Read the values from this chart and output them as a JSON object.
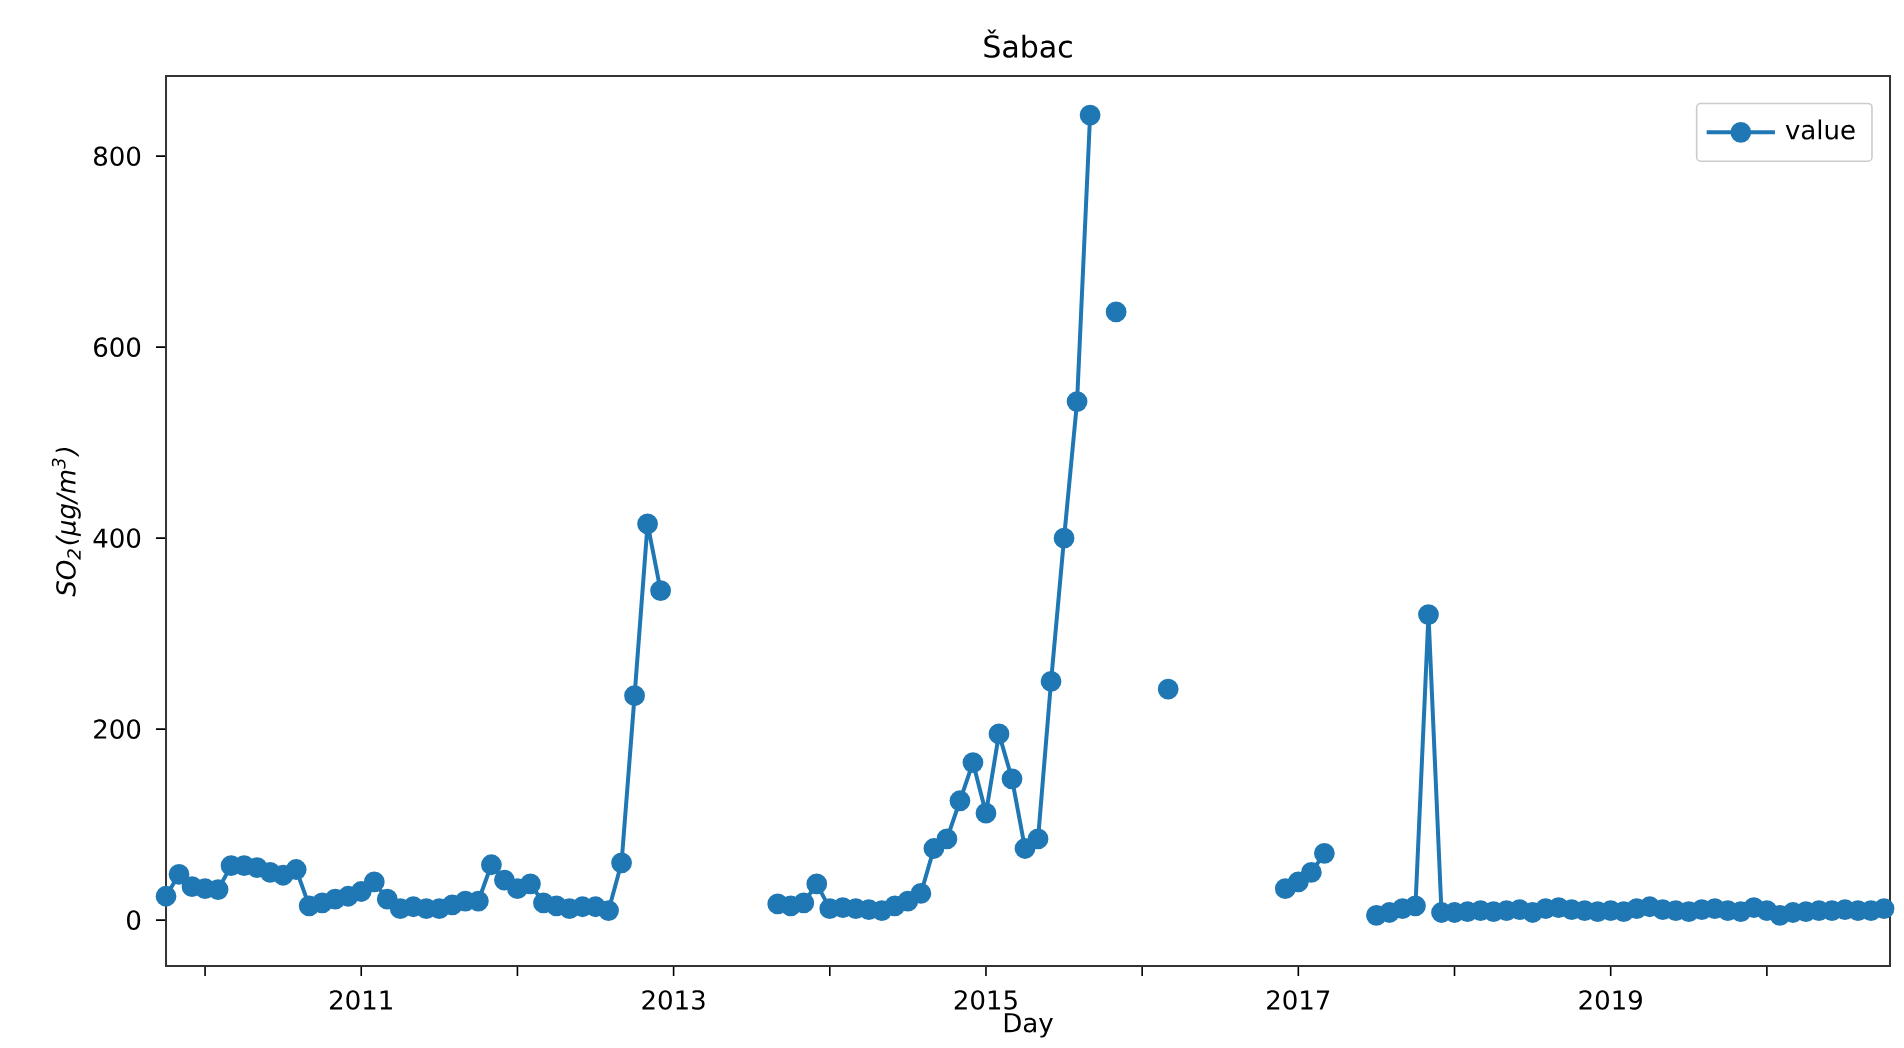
{
  "chart_data": {
    "type": "line",
    "title": "Šabac",
    "xlabel": "Day",
    "ylabel": "SO$_{2}$(μg/m$^{3}$)",
    "x": [
      "2009-10",
      "2009-11",
      "2009-12",
      "2010-01",
      "2010-02",
      "2010-03",
      "2010-04",
      "2010-05",
      "2010-06",
      "2010-07",
      "2010-08",
      "2010-09",
      "2010-10",
      "2010-11",
      "2010-12",
      "2011-01",
      "2011-02",
      "2011-03",
      "2011-04",
      "2011-05",
      "2011-06",
      "2011-07",
      "2011-08",
      "2011-09",
      "2011-10",
      "2011-11",
      "2011-12",
      "2012-01",
      "2012-02",
      "2012-03",
      "2012-04",
      "2012-05",
      "2012-06",
      "2012-07",
      "2012-08",
      "2012-09",
      "2012-10",
      "2012-11",
      "2012-12",
      "2013-01",
      "2013-02",
      "2013-03",
      "2013-04",
      "2013-05",
      "2013-06",
      "2013-07",
      "2013-08",
      "2013-09",
      "2013-10",
      "2013-11",
      "2013-12",
      "2014-01",
      "2014-02",
      "2014-03",
      "2014-04",
      "2014-05",
      "2014-06",
      "2014-07",
      "2014-08",
      "2014-09",
      "2014-10",
      "2014-11",
      "2014-12",
      "2015-01",
      "2015-02",
      "2015-03",
      "2015-04",
      "2015-05",
      "2015-06",
      "2015-07",
      "2015-08",
      "2015-09",
      "2015-10",
      "2015-11",
      "2015-12",
      "2016-01",
      "2016-02",
      "2016-03",
      "2016-04",
      "2016-05",
      "2016-06",
      "2016-07",
      "2016-08",
      "2016-09",
      "2016-10",
      "2016-11",
      "2016-12",
      "2017-01",
      "2017-02",
      "2017-03",
      "2017-04",
      "2017-05",
      "2017-06",
      "2017-07",
      "2017-08",
      "2017-09",
      "2017-10",
      "2017-11",
      "2017-12",
      "2018-01",
      "2018-02",
      "2018-03",
      "2018-04",
      "2018-05",
      "2018-06",
      "2018-07",
      "2018-08",
      "2018-09",
      "2018-10",
      "2018-11",
      "2018-12",
      "2019-01",
      "2019-02",
      "2019-03",
      "2019-04",
      "2019-05",
      "2019-06",
      "2019-07",
      "2019-08",
      "2019-09",
      "2019-10",
      "2019-11",
      "2019-12",
      "2020-01",
      "2020-02",
      "2020-03",
      "2020-04",
      "2020-05",
      "2020-06",
      "2020-07",
      "2020-08",
      "2020-09",
      "2020-10"
    ],
    "series": [
      {
        "name": "value",
        "color": "#1f77b4",
        "values": [
          25,
          48,
          35,
          33,
          32,
          57,
          57,
          55,
          50,
          47,
          53,
          15,
          18,
          22,
          25,
          30,
          40,
          22,
          12,
          14,
          12,
          12,
          16,
          20,
          20,
          58,
          42,
          33,
          38,
          18,
          15,
          12,
          14,
          14,
          10,
          60,
          235,
          415,
          345,
          null,
          null,
          null,
          null,
          null,
          null,
          null,
          null,
          17,
          15,
          18,
          38,
          12,
          13,
          12,
          11,
          10,
          15,
          20,
          28,
          75,
          85,
          125,
          165,
          112,
          195,
          148,
          75,
          85,
          250,
          400,
          543,
          843,
          null,
          637,
          null,
          null,
          null,
          242,
          null,
          null,
          null,
          null,
          null,
          null,
          null,
          null,
          33,
          40,
          50,
          70,
          null,
          null,
          null,
          5,
          8,
          12,
          15,
          320,
          8,
          8,
          9,
          10,
          9,
          10,
          11,
          8,
          12,
          13,
          11,
          10,
          9,
          10,
          9,
          12,
          14,
          11,
          10,
          9,
          11,
          12,
          10,
          9,
          13,
          10,
          5,
          8,
          9,
          10,
          10,
          11,
          10,
          10,
          12
        ]
      }
    ],
    "xlim": [
      "2009-10-01",
      "2020-10-15"
    ],
    "xticks": [
      {
        "value": "2010",
        "label": null
      },
      "2011",
      {
        "value": "2012",
        "label": null
      },
      "2013",
      {
        "value": "2014",
        "label": null
      },
      "2015",
      {
        "value": "2016",
        "label": null
      },
      "2017",
      {
        "value": "2018",
        "label": null
      },
      "2019",
      {
        "value": "2020",
        "label": null
      }
    ],
    "ylim": [
      -48,
      884
    ],
    "yticks": [
      0,
      200,
      400,
      600,
      800
    ],
    "legend": "top right",
    "marker": "circle",
    "line_style": "solid"
  }
}
